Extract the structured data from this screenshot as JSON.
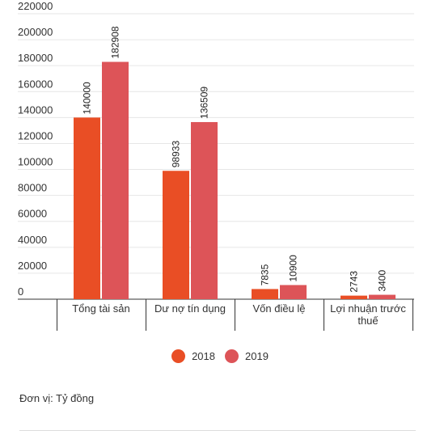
{
  "chart_data": {
    "type": "bar",
    "categories": [
      "Tổng tài sản",
      "Dư nợ tín dụng",
      "Vốn điều lệ",
      "Lợi nhuận trước thuế"
    ],
    "category_lines": [
      [
        "Tổng tài sản"
      ],
      [
        "Dư nợ tín dụng"
      ],
      [
        "Vốn điều lệ"
      ],
      [
        "Lợi nhuận trước",
        "thuế"
      ]
    ],
    "series": [
      {
        "name": "2018",
        "values": [
          140000,
          98933,
          7835,
          2743
        ],
        "color": "#e94e25"
      },
      {
        "name": "2019",
        "values": [
          182908,
          136509,
          10900,
          3400
        ],
        "color": "#dd5458"
      }
    ],
    "ylim": [
      0,
      220000
    ],
    "yticks": [
      0,
      20000,
      40000,
      60000,
      80000,
      100000,
      120000,
      140000,
      160000,
      180000,
      200000,
      220000
    ],
    "grid": true,
    "legend_position": "bottom-center",
    "title": "",
    "xlabel": "",
    "ylabel": ""
  },
  "footer": {
    "unit_note": "Đơn vị: Tỷ đồng"
  },
  "colors": {
    "grid": "#e6e6e6",
    "axis": "#333333",
    "text": "#333333"
  }
}
